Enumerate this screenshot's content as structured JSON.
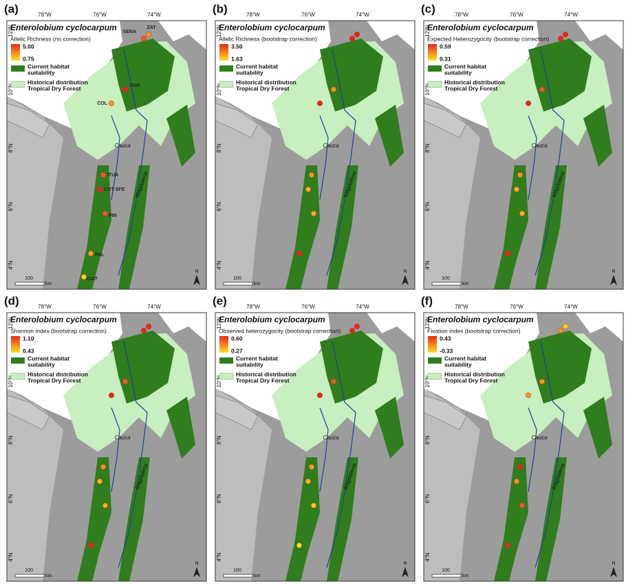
{
  "longitudes": [
    "78°W",
    "76°W",
    "74°W"
  ],
  "latitudes": [
    "12°N",
    "10°N",
    "8°N",
    "6°N",
    "4°N"
  ],
  "legend_habitat": [
    "Current habitat",
    "suitability"
  ],
  "legend_historical": [
    "Historical distribution",
    "Tropical Dry Forest"
  ],
  "rivers": [
    "Cauca",
    "Magdalena"
  ],
  "scale": {
    "value": "100",
    "unit": "km"
  },
  "north": "N",
  "sites": [
    "ZAT",
    "SENA",
    "GUA",
    "COL",
    "ITUA",
    "COT-SFE",
    "PIN",
    "PAL",
    "CIAT"
  ],
  "panels": [
    {
      "label": "(a)",
      "species": "Enterolobium cyclocarpum",
      "metric": "Allelic Richness (no correction)",
      "legend_max": "5.00",
      "legend_min": "0.75",
      "point_colors": [
        "#f7941d",
        "#f15a24",
        "#e8271a",
        "#f7941d",
        "#f15a24",
        "#e8271a",
        "#f15a24",
        "#f7a21d",
        "#ffd21f"
      ]
    },
    {
      "label": "(b)",
      "species": "Enterolobium cyclocarpum",
      "metric": "Allelic Richness (bootstrap correction)",
      "legend_max": "3.50",
      "legend_min": "1.63",
      "point_colors": [
        "#e8271a",
        "#e8271a",
        "#f7941d",
        "#e8271a",
        "#f7941d",
        "#fbb01d",
        "#fbb01d",
        "#e8271a",
        null
      ]
    },
    {
      "label": "(c)",
      "species": "Enterolobium cyclocarpum",
      "metric": "Expected Heterozygocity (bootstrap correction)",
      "legend_max": "0.59",
      "legend_min": "0.31",
      "point_colors": [
        "#e8271a",
        "#e8271a",
        "#f15a24",
        "#e8271a",
        "#f7941d",
        "#fbb01d",
        "#fbb01d",
        "#e8271a",
        null
      ]
    },
    {
      "label": "(d)",
      "species": "Enterolobium cyclocarpum",
      "metric": "Shannon index (bootstrap correction)",
      "legend_max": "1.10",
      "legend_min": "0.43",
      "point_colors": [
        "#e8271a",
        "#e8271a",
        "#f15a24",
        "#e8271a",
        "#f7941d",
        "#fbb01d",
        "#fbb01d",
        "#e8271a",
        null
      ]
    },
    {
      "label": "(e)",
      "species": "Enterolobium cyclocarpum",
      "metric": "Observed heterozygocity (bootstrap correction)",
      "legend_max": "0.60",
      "legend_min": "0.27",
      "point_colors": [
        "#e8271a",
        "#e8271a",
        "#f15a24",
        "#e8271a",
        "#f7a21d",
        "#fbb01d",
        "#fbc51d",
        "#ffe01f",
        null
      ]
    },
    {
      "label": "(f)",
      "species": "Enterolobium cyclocarpum",
      "metric": "Fixation index (bootstrap correction)",
      "legend_max": "0.43",
      "legend_min": "-0.33",
      "point_colors": [
        "#ffd21f",
        "#f7941d",
        "#f7941d",
        "#f7941d",
        "#e8271a",
        "#f7941d",
        "#f15a24",
        "#e8271a",
        null
      ]
    }
  ]
}
